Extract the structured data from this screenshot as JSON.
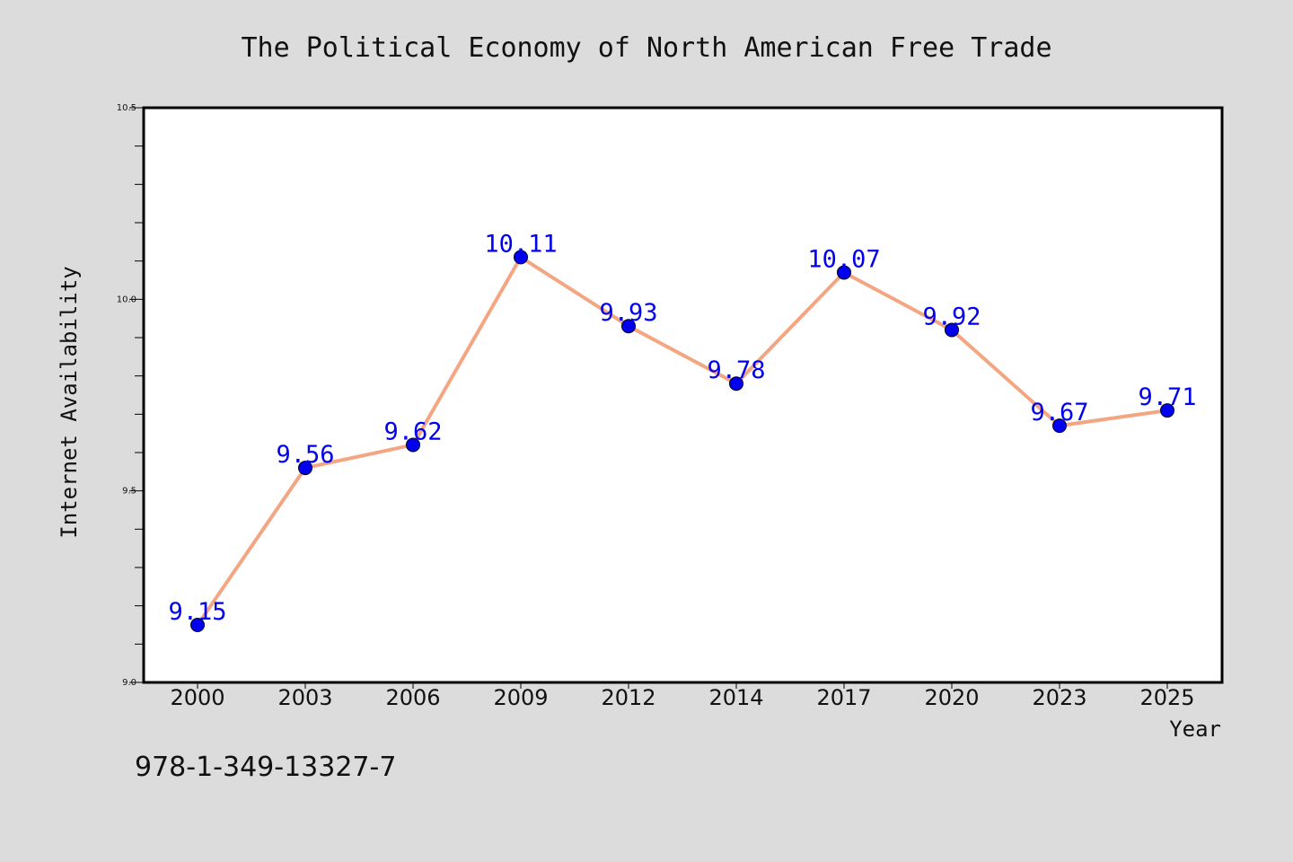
{
  "chart_data": {
    "type": "line",
    "title": "The Political Economy of North American Free Trade",
    "xlabel": "Year",
    "ylabel": "Internet Availability",
    "categories": [
      "2000",
      "2003",
      "2006",
      "2009",
      "2012",
      "2014",
      "2017",
      "2020",
      "2023",
      "2025"
    ],
    "values": [
      9.15,
      9.56,
      9.62,
      10.11,
      9.93,
      9.78,
      10.07,
      9.92,
      9.67,
      9.71
    ],
    "data_labels": [
      "9.15",
      "9.56",
      "9.62",
      "10.11",
      "9.93",
      "9.78",
      "10.07",
      "9.92",
      "9.67",
      "9.71"
    ],
    "ylim": [
      9.0,
      10.5
    ],
    "yticks": [
      "9.0",
      "9.5",
      "10.0",
      "10.5"
    ],
    "grid": false,
    "legend": "none",
    "colors": {
      "line": "#f4a582",
      "marker": "#0000ee",
      "labels": "#0000ee",
      "background": "#dcdcdc",
      "plot_area": "#ffffff"
    }
  },
  "footer": {
    "isbn": "978-1-349-13327-7"
  }
}
